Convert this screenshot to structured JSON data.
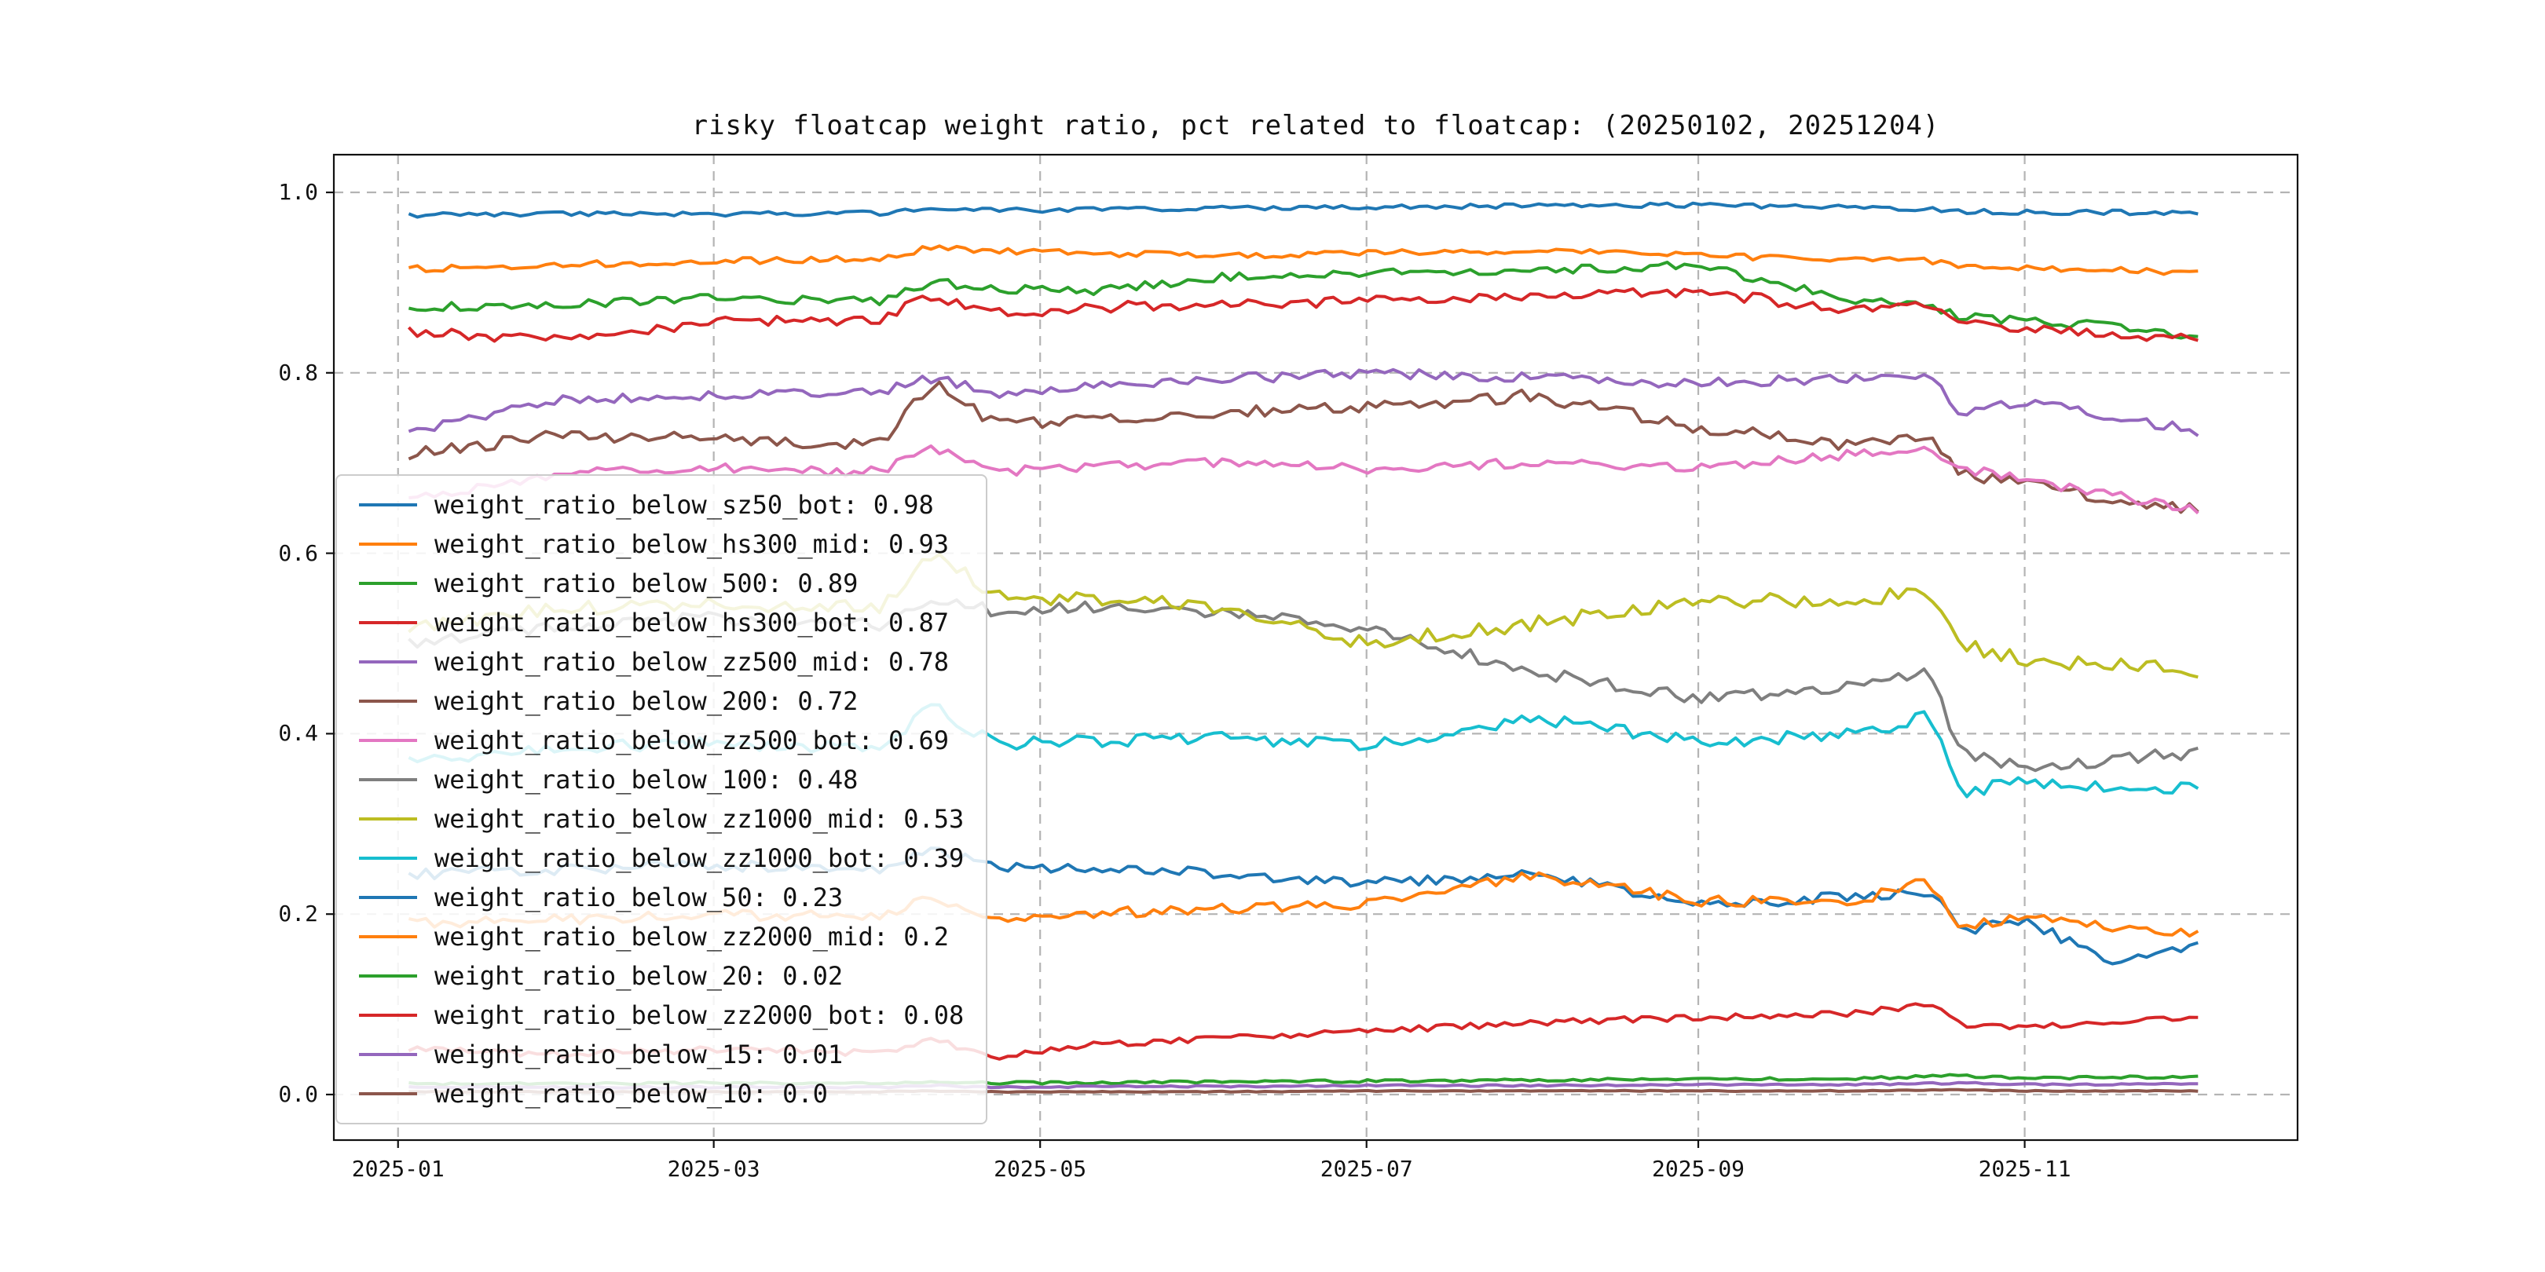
{
  "chart_data": {
    "type": "line",
    "title": "risky floatcap weight ratio, pct related to floatcap: (20250102, 20251204)",
    "grid": true,
    "legend_position": "center-left",
    "xlim_days": [
      -12,
      355
    ],
    "ylim": [
      -0.0505,
      1.0418
    ],
    "x_ticks": [
      {
        "label": "2025-01",
        "day": 0
      },
      {
        "label": "2025-03",
        "day": 59
      },
      {
        "label": "2025-05",
        "day": 120
      },
      {
        "label": "2025-07",
        "day": 181
      },
      {
        "label": "2025-09",
        "day": 243
      },
      {
        "label": "2025-11",
        "day": 304
      }
    ],
    "y_ticks": [
      "0.0",
      "0.2",
      "0.4",
      "0.6",
      "0.8",
      "1.0"
    ],
    "x_anchor_days": [
      2,
      31,
      59,
      90,
      100,
      112,
      130,
      151,
      181,
      212,
      243,
      273,
      286,
      292,
      304,
      320,
      337
    ],
    "x_range_dates": [
      "2025-01-02",
      "2025-12-04"
    ],
    "series": [
      {
        "name": "weight_ratio_below_sz50_bot",
        "legend_value": "0.98",
        "color": "#1f77b4",
        "values": [
          0.975,
          0.976,
          0.976,
          0.977,
          0.982,
          0.98,
          0.981,
          0.982,
          0.984,
          0.985,
          0.986,
          0.983,
          0.982,
          0.979,
          0.978,
          0.978,
          0.977
        ]
      },
      {
        "name": "weight_ratio_below_hs300_mid",
        "legend_value": "0.93",
        "color": "#ff7f0e",
        "values": [
          0.915,
          0.92,
          0.924,
          0.926,
          0.94,
          0.935,
          0.932,
          0.93,
          0.933,
          0.935,
          0.93,
          0.925,
          0.924,
          0.918,
          0.916,
          0.914,
          0.91
        ]
      },
      {
        "name": "weight_ratio_below_500",
        "legend_value": "0.89",
        "color": "#2ca02c",
        "values": [
          0.872,
          0.876,
          0.884,
          0.879,
          0.9,
          0.893,
          0.89,
          0.905,
          0.912,
          0.913,
          0.919,
          0.88,
          0.876,
          0.862,
          0.858,
          0.852,
          0.839
        ]
      },
      {
        "name": "weight_ratio_below_hs300_bot",
        "legend_value": "0.87",
        "color": "#d62728",
        "values": [
          0.845,
          0.837,
          0.856,
          0.86,
          0.886,
          0.866,
          0.872,
          0.876,
          0.879,
          0.884,
          0.89,
          0.869,
          0.878,
          0.854,
          0.85,
          0.843,
          0.837
        ]
      },
      {
        "name": "weight_ratio_below_zz500_mid",
        "legend_value": "0.78",
        "color": "#9467bd",
        "values": [
          0.735,
          0.772,
          0.774,
          0.778,
          0.795,
          0.778,
          0.785,
          0.792,
          0.8,
          0.795,
          0.788,
          0.795,
          0.8,
          0.757,
          0.768,
          0.752,
          0.735
        ]
      },
      {
        "name": "weight_ratio_below_200",
        "legend_value": "0.72",
        "color": "#8c564b",
        "values": [
          0.71,
          0.732,
          0.726,
          0.722,
          0.79,
          0.742,
          0.748,
          0.756,
          0.762,
          0.775,
          0.74,
          0.718,
          0.73,
          0.688,
          0.678,
          0.66,
          0.648
        ]
      },
      {
        "name": "weight_ratio_below_zz500_bot",
        "legend_value": "0.69",
        "color": "#e377c2",
        "values": [
          0.66,
          0.69,
          0.694,
          0.69,
          0.718,
          0.69,
          0.696,
          0.7,
          0.694,
          0.7,
          0.694,
          0.71,
          0.716,
          0.694,
          0.682,
          0.664,
          0.648
        ]
      },
      {
        "name": "weight_ratio_below_100",
        "legend_value": "0.48",
        "color": "#7f7f7f",
        "values": [
          0.5,
          0.52,
          0.528,
          0.52,
          0.548,
          0.536,
          0.54,
          0.536,
          0.518,
          0.468,
          0.44,
          0.452,
          0.47,
          0.382,
          0.362,
          0.37,
          0.38
        ]
      },
      {
        "name": "weight_ratio_below_zz1000_mid",
        "legend_value": "0.53",
        "color": "#bcbd22",
        "values": [
          0.52,
          0.538,
          0.544,
          0.54,
          0.6,
          0.552,
          0.548,
          0.542,
          0.5,
          0.522,
          0.546,
          0.55,
          0.556,
          0.498,
          0.482,
          0.476,
          0.47
        ]
      },
      {
        "name": "weight_ratio_below_zz1000_bot",
        "legend_value": "0.39",
        "color": "#17becf",
        "values": [
          0.368,
          0.384,
          0.39,
          0.384,
          0.43,
          0.388,
          0.392,
          0.396,
          0.386,
          0.418,
          0.39,
          0.4,
          0.42,
          0.336,
          0.346,
          0.34,
          0.338
        ]
      },
      {
        "name": "weight_ratio_below_50",
        "legend_value": "0.23",
        "color": "#1f77b4",
        "values": [
          0.244,
          0.25,
          0.254,
          0.25,
          0.27,
          0.254,
          0.248,
          0.246,
          0.234,
          0.246,
          0.21,
          0.22,
          0.226,
          0.182,
          0.192,
          0.15,
          0.166
        ]
      },
      {
        "name": "weight_ratio_below_zz2000_mid",
        "legend_value": "0.2",
        "color": "#ff7f0e",
        "values": [
          0.19,
          0.194,
          0.2,
          0.196,
          0.22,
          0.196,
          0.2,
          0.206,
          0.21,
          0.244,
          0.214,
          0.216,
          0.236,
          0.186,
          0.196,
          0.186,
          0.18
        ]
      },
      {
        "name": "weight_ratio_below_20",
        "legend_value": "0.02",
        "color": "#2ca02c",
        "values": [
          0.012,
          0.012,
          0.013,
          0.012,
          0.015,
          0.013,
          0.013,
          0.014,
          0.015,
          0.016,
          0.017,
          0.018,
          0.02,
          0.021,
          0.018,
          0.019,
          0.02
        ]
      },
      {
        "name": "weight_ratio_below_zz2000_bot",
        "legend_value": "0.08",
        "color": "#d62728",
        "values": [
          0.05,
          0.044,
          0.05,
          0.046,
          0.06,
          0.042,
          0.055,
          0.062,
          0.07,
          0.08,
          0.085,
          0.09,
          0.1,
          0.078,
          0.075,
          0.08,
          0.088
        ]
      },
      {
        "name": "weight_ratio_below_15",
        "legend_value": "0.01",
        "color": "#9467bd",
        "values": [
          0.008,
          0.008,
          0.008,
          0.008,
          0.01,
          0.008,
          0.009,
          0.009,
          0.01,
          0.01,
          0.011,
          0.011,
          0.012,
          0.013,
          0.011,
          0.011,
          0.012
        ]
      },
      {
        "name": "weight_ratio_below_10",
        "legend_value": "0.0",
        "color": "#8c564b",
        "values": [
          0.003,
          0.003,
          0.003,
          0.003,
          0.004,
          0.003,
          0.003,
          0.003,
          0.004,
          0.004,
          0.004,
          0.004,
          0.005,
          0.005,
          0.004,
          0.004,
          0.004
        ]
      }
    ]
  }
}
